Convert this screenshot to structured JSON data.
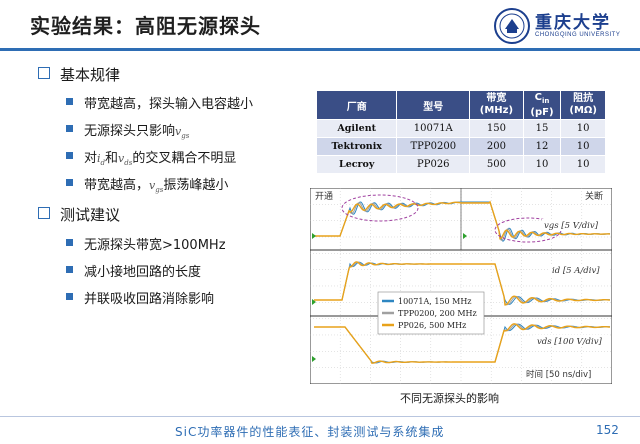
{
  "title": "实验结果：高阻无源探头",
  "logo": {
    "name": "重庆大学",
    "subtitle": "CHONGQING UNIVERSITY",
    "icon": "university-seal-icon"
  },
  "sections": [
    {
      "label": "基本规律",
      "bullets": [
        {
          "text": "带宽越高，探头输入电容越小"
        },
        {
          "pre": "无源探头只影响",
          "sym": "vgs",
          "post": ""
        },
        {
          "pre": "对",
          "sym": "id",
          "mid": "和",
          "sym2": "vds",
          "post": "的交叉耦合不明显"
        },
        {
          "pre": "带宽越高，",
          "sym": "vgs",
          "post": "振荡峰越小"
        }
      ]
    },
    {
      "label": "测试建议",
      "bullets": [
        {
          "text": "无源探头带宽>100MHz"
        },
        {
          "text": "减小接地回路的长度"
        },
        {
          "text": "并联吸收回路消除影响"
        }
      ]
    }
  ],
  "table": {
    "headers": [
      "厂商",
      "型号",
      "带宽\n(MHz)",
      "Cin\n(pF)",
      "阻抗\n(MΩ)"
    ],
    "rows": [
      [
        "Agilent",
        "10071A",
        "150",
        "15",
        "10"
      ],
      [
        "Tektronix",
        "TPP0200",
        "200",
        "12",
        "10"
      ],
      [
        "Lecroy",
        "PP026",
        "500",
        "10",
        "10"
      ]
    ]
  },
  "scope": {
    "turn_on": "开通",
    "turn_off": "关断",
    "vgs_label": "vgs [5 V/div]",
    "id_label": "id [5 A/div]",
    "vds_label": "vds [100 V/div]",
    "time_label": "时间 [50 ns/div]",
    "legend": [
      {
        "name": "10071A, 150 MHz",
        "color": "#2e86c1"
      },
      {
        "name": "TPP0200, 200 MHz",
        "color": "#a0a0a0"
      },
      {
        "name": "PP026, 500 MHz",
        "color": "#e8a21a"
      }
    ]
  },
  "caption": "不同无源探头的影响",
  "footer": "SiC功率器件的性能表征、封装测试与系统集成",
  "page_number": "152"
}
